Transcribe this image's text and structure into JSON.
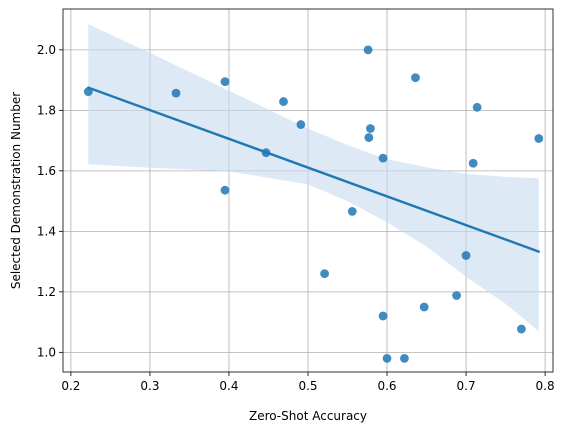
{
  "chart_data": {
    "type": "scatter",
    "title": "",
    "xlabel": "Zero-Shot Accuracy",
    "ylabel": "Selected Demonstration Number",
    "xlim": [
      0.19,
      0.81
    ],
    "ylim": [
      0.935,
      2.135
    ],
    "xticks": [
      0.2,
      0.3,
      0.4,
      0.5,
      0.6,
      0.7,
      0.8
    ],
    "xtick_labels": [
      "0.2",
      "0.3",
      "0.4",
      "0.5",
      "0.6",
      "0.7",
      "0.8"
    ],
    "yticks": [
      1.0,
      1.2,
      1.4,
      1.6,
      1.8,
      2.0
    ],
    "ytick_labels": [
      "1.0",
      "1.2",
      "1.4",
      "1.6",
      "1.8",
      "2.0"
    ],
    "grid": true,
    "legend": "none",
    "colors": {
      "points": "#1f77b4",
      "line": "#1f77b4",
      "band": "#c6dbef",
      "grid": "#b0b0b0"
    },
    "points": [
      {
        "x": 0.222,
        "y": 1.862
      },
      {
        "x": 0.333,
        "y": 1.857
      },
      {
        "x": 0.395,
        "y": 1.895
      },
      {
        "x": 0.395,
        "y": 1.536
      },
      {
        "x": 0.447,
        "y": 1.66
      },
      {
        "x": 0.469,
        "y": 1.829
      },
      {
        "x": 0.491,
        "y": 1.753
      },
      {
        "x": 0.521,
        "y": 1.26
      },
      {
        "x": 0.556,
        "y": 1.466
      },
      {
        "x": 0.576,
        "y": 2.0
      },
      {
        "x": 0.577,
        "y": 1.71
      },
      {
        "x": 0.579,
        "y": 1.74
      },
      {
        "x": 0.595,
        "y": 1.642
      },
      {
        "x": 0.595,
        "y": 1.12
      },
      {
        "x": 0.6,
        "y": 0.98
      },
      {
        "x": 0.622,
        "y": 0.98
      },
      {
        "x": 0.636,
        "y": 1.908
      },
      {
        "x": 0.647,
        "y": 1.15
      },
      {
        "x": 0.688,
        "y": 1.188
      },
      {
        "x": 0.7,
        "y": 1.32
      },
      {
        "x": 0.709,
        "y": 1.625
      },
      {
        "x": 0.714,
        "y": 1.81
      },
      {
        "x": 0.77,
        "y": 1.077
      },
      {
        "x": 0.792,
        "y": 1.707
      }
    ],
    "regression_line": {
      "x": [
        0.222,
        0.792
      ],
      "y": [
        1.875,
        1.333
      ]
    },
    "confidence_band": {
      "x": [
        0.222,
        0.3,
        0.4,
        0.5,
        0.55,
        0.6,
        0.65,
        0.7,
        0.75,
        0.792
      ],
      "upper": [
        2.085,
        1.99,
        1.865,
        1.74,
        1.685,
        1.638,
        1.612,
        1.59,
        1.58,
        1.575
      ],
      "lower": [
        1.622,
        1.61,
        1.598,
        1.555,
        1.5,
        1.43,
        1.35,
        1.25,
        1.16,
        1.07
      ]
    }
  }
}
